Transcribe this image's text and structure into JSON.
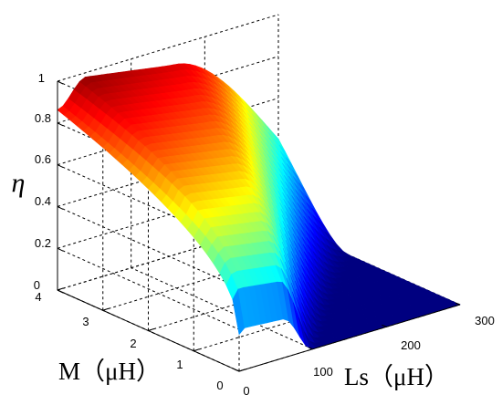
{
  "chart_data": {
    "type": "surface",
    "title": "",
    "xlabel": "Ls（μH）",
    "ylabel": "M（μH）",
    "zlabel": "η",
    "x_ticks": [
      "0",
      "100",
      "200",
      "300"
    ],
    "y_ticks": [
      "0",
      "1",
      "2",
      "3",
      "4"
    ],
    "z_ticks": [
      "0",
      "0.2",
      "0.4",
      "0.6",
      "0.8",
      "1"
    ],
    "xlim": [
      0,
      300
    ],
    "ylim": [
      0,
      4
    ],
    "zlim": [
      0,
      1
    ],
    "grid": true,
    "colormap": "jet",
    "surface_profile": {
      "ls": [
        0,
        20,
        40,
        60,
        80,
        100,
        120,
        140,
        160,
        180,
        200,
        220,
        240,
        260,
        280,
        300
      ],
      "eta_at_M_4": [
        0.88,
        0.97,
        0.98,
        0.97,
        0.95,
        0.93,
        0.91,
        0.88,
        0.75,
        0.6,
        0.45,
        0.3,
        0.17,
        0.08,
        0.03,
        0.01
      ],
      "eta_at_M_0": [
        0.22,
        0.2,
        0.17,
        0.14,
        0.1,
        0.06,
        0.03,
        0.01,
        0.0,
        0.0,
        0.0,
        0.0,
        0.0,
        0.0,
        0.0,
        0.0
      ]
    }
  }
}
